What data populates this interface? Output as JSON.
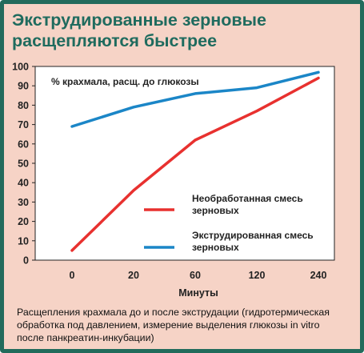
{
  "title_lines": [
    "Экструдированные зерновые",
    "расщепляются быстрее"
  ],
  "caption_lines": [
    "Расщепления крахмала до и после экструдации (гидротермическая",
    "обработка под давлением, измерение выделения глюкозы in vitro",
    "после панкреатин-инкубации)"
  ],
  "colors": {
    "frame": "#236b5c",
    "background": "#f6d3c6",
    "title": "#1f6b5e",
    "untreated": "#e8312f",
    "extruded": "#1b86c7"
  },
  "chart_data": {
    "type": "line",
    "title": "",
    "xlabel": "Минуты",
    "ylabel": "% крахмала, расщ. до глюкозы",
    "categories": [
      "0",
      "20",
      "60",
      "120",
      "240"
    ],
    "ylim": [
      0,
      100
    ],
    "yticks": [
      0,
      10,
      20,
      30,
      40,
      50,
      60,
      70,
      80,
      90,
      100
    ],
    "grid": false,
    "legend_position": "right-middle",
    "series": [
      {
        "name": "Необработанная смесь зерновых",
        "color": "#e8312f",
        "values": [
          5,
          36,
          62,
          77,
          94
        ]
      },
      {
        "name": "Экструдированная смесь зерновых",
        "color": "#1b86c7",
        "values": [
          69,
          79,
          86,
          89,
          97
        ]
      }
    ]
  }
}
